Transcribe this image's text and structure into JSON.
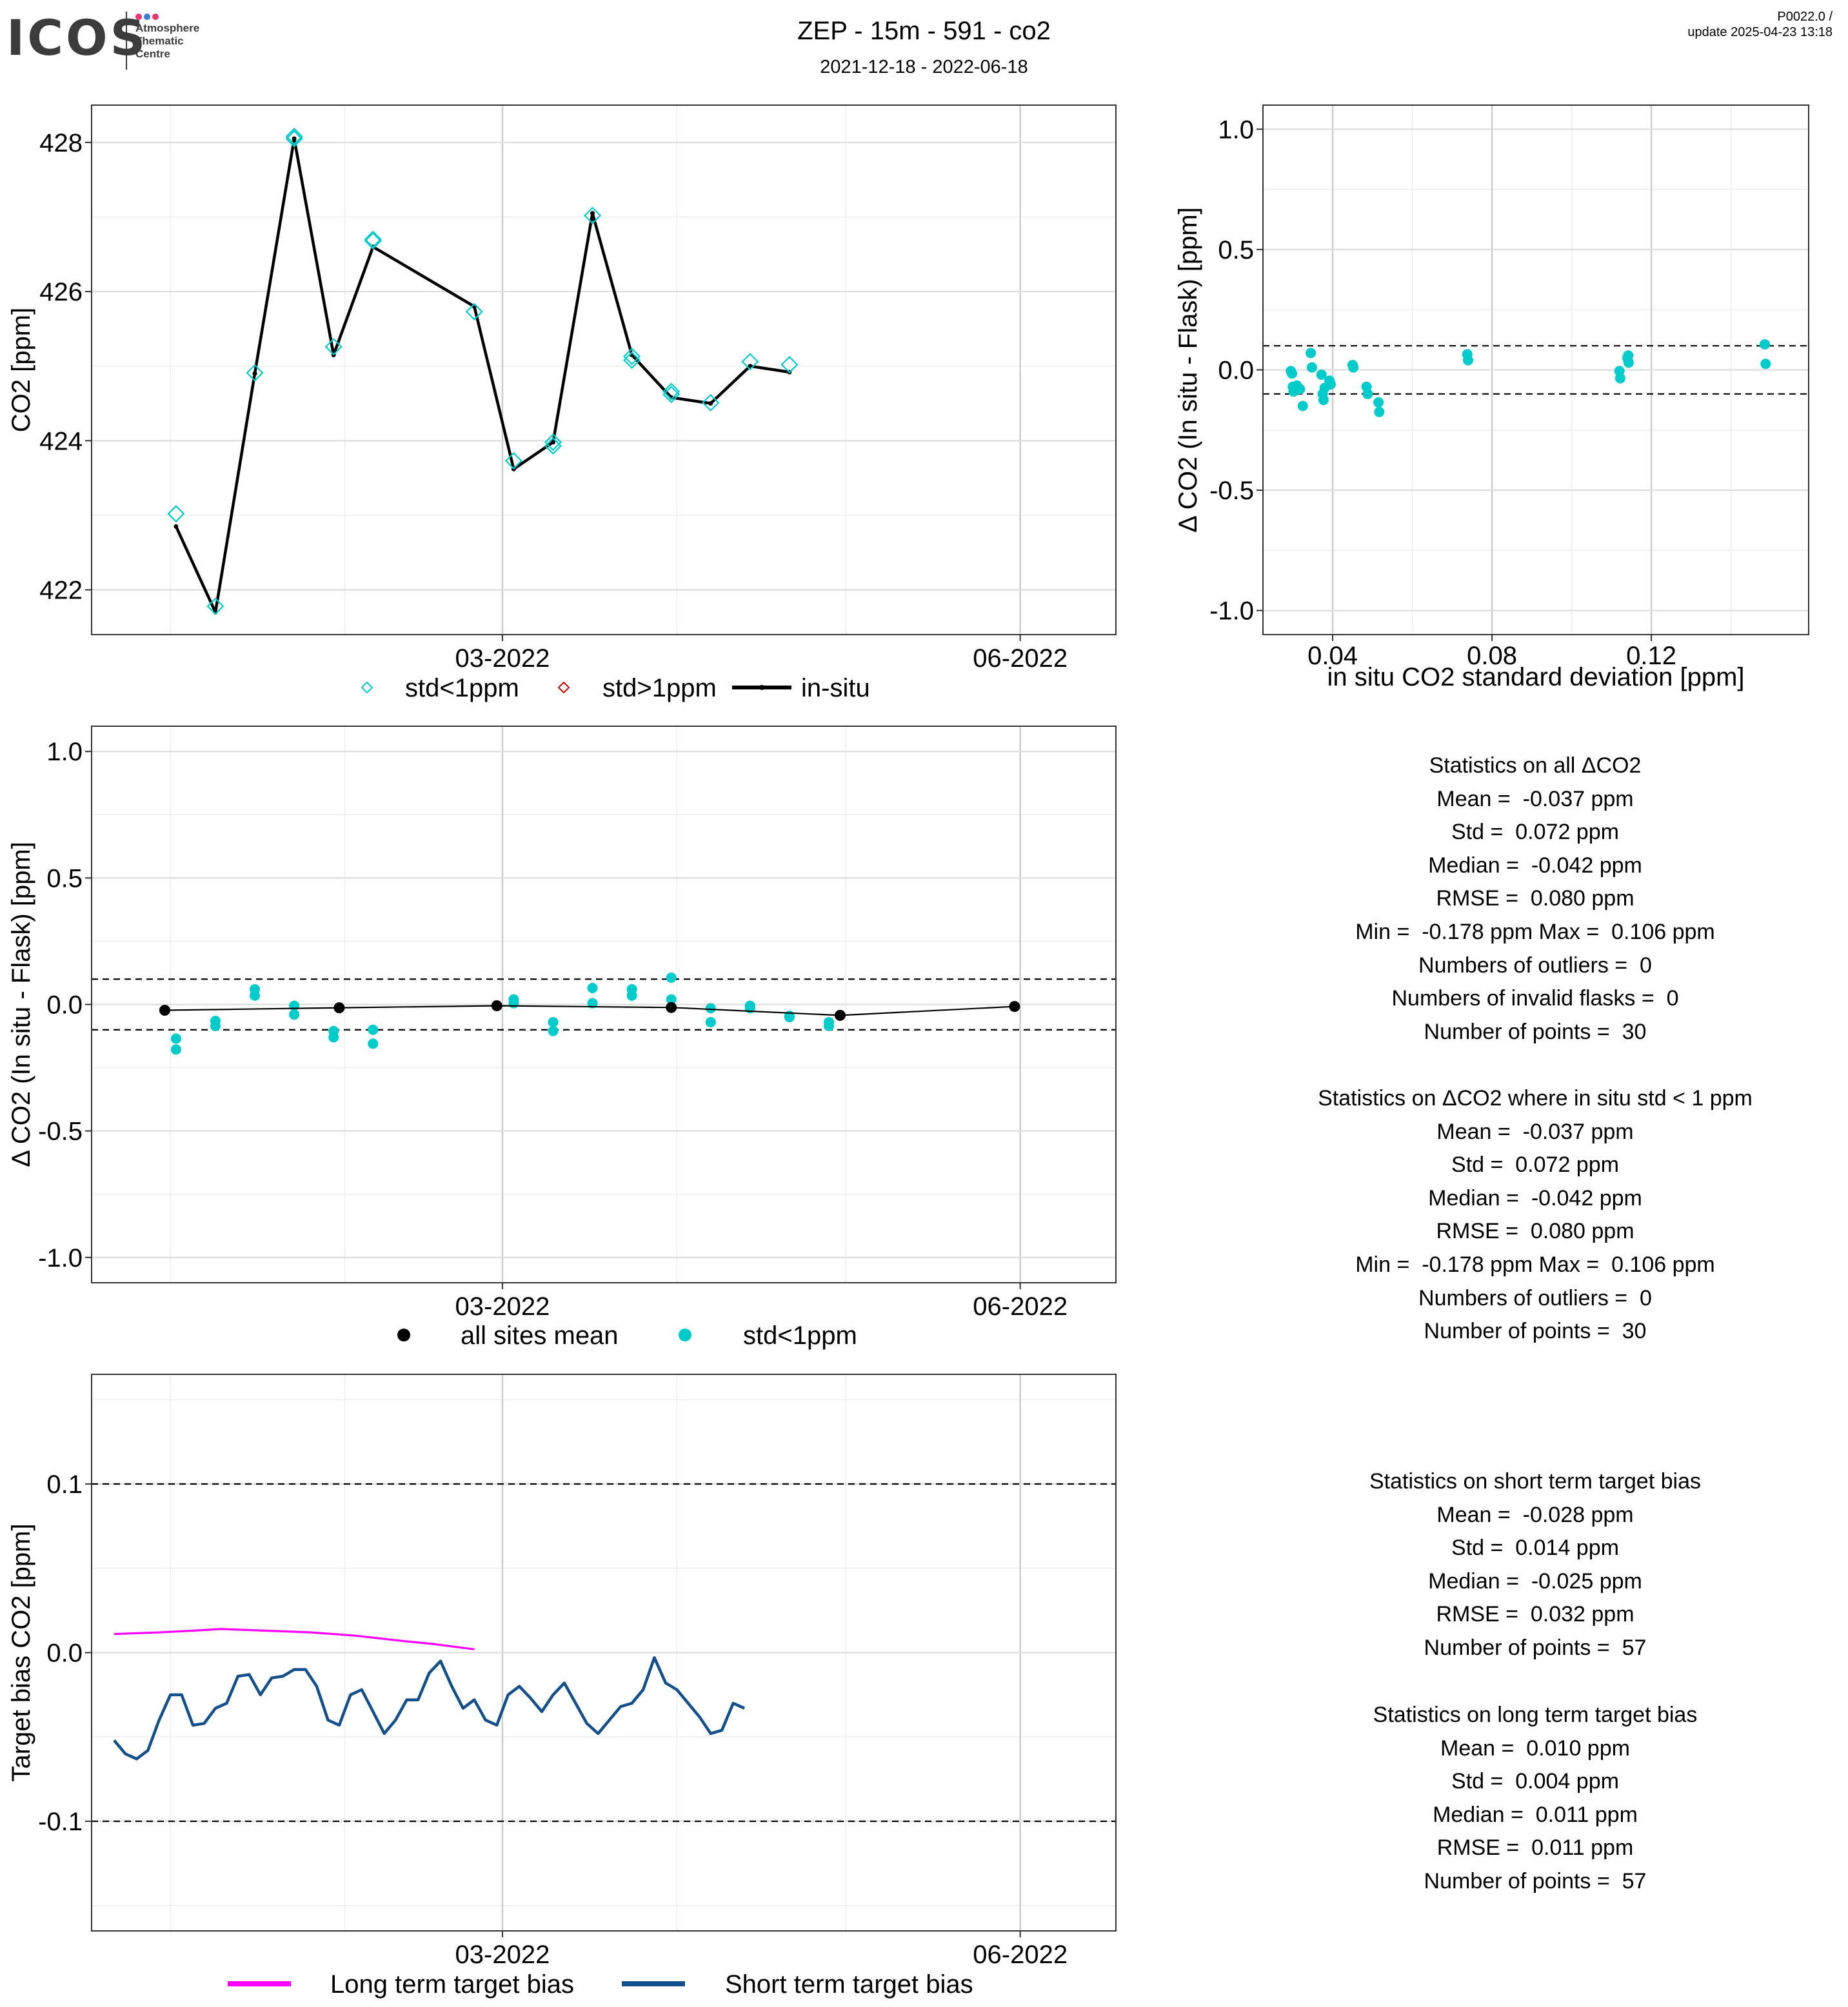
{
  "header": {
    "title": "ZEP - 15m - 591 - co2",
    "subtitle": "2021-12-18 - 2022-06-18",
    "version": "P0022.0 /",
    "update": "update  2025-04-23 13:18",
    "logo": {
      "text": "ICOS",
      "sub": [
        "Atmosphere",
        "Thematic",
        "Centre"
      ],
      "dot_colors": [
        "#e8386f",
        "#3a7ad8",
        "#e8386f"
      ]
    }
  },
  "colors": {
    "flask": "#00cccc",
    "flask_bad": "#dd0000",
    "insitu": "#000000",
    "long_term": "#ff00ff",
    "short_term": "#124f8c"
  },
  "chart_data": [
    {
      "id": "timeseries",
      "type": "line",
      "ylabel": "CO2 [ppm]",
      "x_ticks": [
        "03-2022",
        "06-2022"
      ],
      "y_ticks": [
        "422",
        "424",
        "426",
        "428"
      ],
      "ylim": [
        421.4,
        428.5
      ],
      "legend": [
        "std<1ppm",
        "std>1ppm",
        "in-situ"
      ],
      "legend_position": "bottom",
      "insitu": [
        {
          "date": "2022-01-02",
          "co2": 422.85
        },
        {
          "date": "2022-01-09",
          "co2": 421.7
        },
        {
          "date": "2022-01-16",
          "co2": 424.9
        },
        {
          "date": "2022-01-23",
          "co2": 428.05
        },
        {
          "date": "2022-01-30",
          "co2": 425.15
        },
        {
          "date": "2022-02-06",
          "co2": 426.6
        },
        {
          "date": "2022-02-24",
          "co2": 425.8
        },
        {
          "date": "2022-03-03",
          "co2": 423.62
        },
        {
          "date": "2022-03-10",
          "co2": 423.98
        },
        {
          "date": "2022-03-17",
          "co2": 427.05
        },
        {
          "date": "2022-03-24",
          "co2": 425.15
        },
        {
          "date": "2022-03-31",
          "co2": 424.58
        },
        {
          "date": "2022-04-07",
          "co2": 424.5
        },
        {
          "date": "2022-04-14",
          "co2": 425.0
        },
        {
          "date": "2022-04-21",
          "co2": 424.92
        }
      ],
      "flask_std_lt_1": [
        {
          "date": "2022-01-02",
          "co2": 423.02
        },
        {
          "date": "2022-01-09",
          "co2": 421.78
        },
        {
          "date": "2022-01-16",
          "co2": 424.91
        },
        {
          "date": "2022-01-23",
          "co2": 428.08
        },
        {
          "date": "2022-01-23",
          "co2": 428.05
        },
        {
          "date": "2022-01-30",
          "co2": 425.26
        },
        {
          "date": "2022-02-06",
          "co2": 426.7
        },
        {
          "date": "2022-02-06",
          "co2": 426.68
        },
        {
          "date": "2022-02-24",
          "co2": 425.73
        },
        {
          "date": "2022-03-03",
          "co2": 423.73
        },
        {
          "date": "2022-03-10",
          "co2": 423.93
        },
        {
          "date": "2022-03-10",
          "co2": 423.98
        },
        {
          "date": "2022-03-17",
          "co2": 427.02
        },
        {
          "date": "2022-03-24",
          "co2": 425.08
        },
        {
          "date": "2022-03-24",
          "co2": 425.13
        },
        {
          "date": "2022-03-31",
          "co2": 424.62
        },
        {
          "date": "2022-03-31",
          "co2": 424.66
        },
        {
          "date": "2022-04-07",
          "co2": 424.51
        },
        {
          "date": "2022-04-14",
          "co2": 425.06
        },
        {
          "date": "2022-04-21",
          "co2": 425.02
        }
      ],
      "flask_std_gt_1": []
    },
    {
      "id": "delta_vs_std",
      "type": "scatter",
      "xlabel": "in situ CO2 standard deviation [ppm]",
      "ylabel": "Δ CO2 (In situ - Flask) [ppm]",
      "x_ticks": [
        "0.04",
        "0.08",
        "0.12"
      ],
      "y_ticks": [
        "-1.0",
        "-0.5",
        "0.0",
        "0.5",
        "1.0"
      ],
      "xlim": [
        0.0225,
        0.1595
      ],
      "ylim": [
        -1.1,
        1.1
      ],
      "reference_lines": [
        -0.1,
        0.1
      ],
      "points": [
        {
          "std": 0.0295,
          "delta": -0.005
        },
        {
          "std": 0.0298,
          "delta": -0.015
        },
        {
          "std": 0.03,
          "delta": -0.07
        },
        {
          "std": 0.0302,
          "delta": -0.09
        },
        {
          "std": 0.031,
          "delta": -0.065
        },
        {
          "std": 0.0318,
          "delta": -0.08
        },
        {
          "std": 0.0325,
          "delta": -0.15
        },
        {
          "std": 0.0345,
          "delta": 0.07
        },
        {
          "std": 0.0348,
          "delta": 0.01
        },
        {
          "std": 0.0372,
          "delta": -0.02
        },
        {
          "std": 0.0375,
          "delta": -0.1
        },
        {
          "std": 0.0377,
          "delta": -0.125
        },
        {
          "std": 0.038,
          "delta": -0.075
        },
        {
          "std": 0.0392,
          "delta": -0.045
        },
        {
          "std": 0.0395,
          "delta": -0.06
        },
        {
          "std": 0.045,
          "delta": 0.02
        },
        {
          "std": 0.0452,
          "delta": 0.01
        },
        {
          "std": 0.0485,
          "delta": -0.07
        },
        {
          "std": 0.0488,
          "delta": -0.1
        },
        {
          "std": 0.0515,
          "delta": -0.135
        },
        {
          "std": 0.0517,
          "delta": -0.175
        },
        {
          "std": 0.0738,
          "delta": 0.065
        },
        {
          "std": 0.074,
          "delta": 0.04
        },
        {
          "std": 0.112,
          "delta": -0.005
        },
        {
          "std": 0.1122,
          "delta": -0.035
        },
        {
          "std": 0.114,
          "delta": 0.05
        },
        {
          "std": 0.1142,
          "delta": 0.06
        },
        {
          "std": 0.1143,
          "delta": 0.03
        },
        {
          "std": 0.1485,
          "delta": 0.106
        },
        {
          "std": 0.1487,
          "delta": 0.025
        }
      ]
    },
    {
      "id": "delta_timeseries",
      "type": "scatter",
      "ylabel": "Δ CO2 (In situ - Flask) [ppm]",
      "x_ticks": [
        "03-2022",
        "06-2022"
      ],
      "y_ticks": [
        "-1.0",
        "-0.5",
        "0.0",
        "0.5",
        "1.0"
      ],
      "ylim": [
        -1.1,
        1.1
      ],
      "reference_lines": [
        -0.1,
        0.1
      ],
      "legend": [
        "all sites mean",
        "std<1ppm"
      ],
      "legend_position": "bottom",
      "all_sites_mean": [
        {
          "date": "2021-12-31",
          "delta": -0.023
        },
        {
          "date": "2022-01-31",
          "delta": -0.013
        },
        {
          "date": "2022-02-28",
          "delta": -0.005
        },
        {
          "date": "2022-03-31",
          "delta": -0.012
        },
        {
          "date": "2022-04-30",
          "delta": -0.043
        },
        {
          "date": "2022-05-31",
          "delta": -0.008
        }
      ],
      "points": [
        {
          "date": "2022-01-02",
          "delta": -0.135
        },
        {
          "date": "2022-01-02",
          "delta": -0.178
        },
        {
          "date": "2022-01-09",
          "delta": -0.065
        },
        {
          "date": "2022-01-09",
          "delta": -0.085
        },
        {
          "date": "2022-01-16",
          "delta": 0.06
        },
        {
          "date": "2022-01-16",
          "delta": 0.035
        },
        {
          "date": "2022-01-23",
          "delta": -0.005
        },
        {
          "date": "2022-01-23",
          "delta": -0.04
        },
        {
          "date": "2022-01-30",
          "delta": -0.105
        },
        {
          "date": "2022-01-30",
          "delta": -0.13
        },
        {
          "date": "2022-02-06",
          "delta": -0.1
        },
        {
          "date": "2022-02-06",
          "delta": -0.155
        },
        {
          "date": "2022-03-03",
          "delta": 0.02
        },
        {
          "date": "2022-03-03",
          "delta": 0.005
        },
        {
          "date": "2022-03-10",
          "delta": -0.07
        },
        {
          "date": "2022-03-10",
          "delta": -0.105
        },
        {
          "date": "2022-03-17",
          "delta": 0.065
        },
        {
          "date": "2022-03-17",
          "delta": 0.005
        },
        {
          "date": "2022-03-24",
          "delta": 0.06
        },
        {
          "date": "2022-03-24",
          "delta": 0.035
        },
        {
          "date": "2022-03-31",
          "delta": 0.106
        },
        {
          "date": "2022-03-31",
          "delta": 0.02
        },
        {
          "date": "2022-04-07",
          "delta": -0.015
        },
        {
          "date": "2022-04-07",
          "delta": -0.07
        },
        {
          "date": "2022-04-14",
          "delta": -0.005
        },
        {
          "date": "2022-04-14",
          "delta": -0.015
        },
        {
          "date": "2022-04-21",
          "delta": -0.045
        },
        {
          "date": "2022-04-21",
          "delta": -0.05
        },
        {
          "date": "2022-04-28",
          "delta": -0.07
        },
        {
          "date": "2022-04-28",
          "delta": -0.085
        }
      ]
    },
    {
      "id": "target_bias",
      "type": "line",
      "ylabel": "Target bias CO2 [ppm]",
      "x_ticks": [
        "03-2022",
        "06-2022"
      ],
      "y_ticks": [
        "-0.1",
        "0.0",
        "0.1"
      ],
      "ylim": [
        -0.165,
        0.165
      ],
      "reference_lines": [
        -0.1,
        0.1
      ],
      "legend": [
        "Long term target bias",
        "Short term target bias"
      ],
      "legend_position": "bottom",
      "long_term": [
        {
          "date": "2021-12-22",
          "bias": 0.011
        },
        {
          "date": "2021-12-30",
          "bias": 0.012
        },
        {
          "date": "2022-01-05",
          "bias": 0.013
        },
        {
          "date": "2022-01-10",
          "bias": 0.014
        },
        {
          "date": "2022-01-18",
          "bias": 0.013
        },
        {
          "date": "2022-01-26",
          "bias": 0.012
        },
        {
          "date": "2022-02-03",
          "bias": 0.01
        },
        {
          "date": "2022-02-11",
          "bias": 0.007
        },
        {
          "date": "2022-02-17",
          "bias": 0.005
        },
        {
          "date": "2022-02-24",
          "bias": 0.002
        }
      ],
      "short_term": [
        {
          "date": "2021-12-22",
          "bias": -0.052
        },
        {
          "date": "2021-12-24",
          "bias": -0.06
        },
        {
          "date": "2021-12-26",
          "bias": -0.063
        },
        {
          "date": "2021-12-28",
          "bias": -0.058
        },
        {
          "date": "2021-12-30",
          "bias": -0.04
        },
        {
          "date": "2022-01-01",
          "bias": -0.025
        },
        {
          "date": "2022-01-03",
          "bias": -0.025
        },
        {
          "date": "2022-01-05",
          "bias": -0.043
        },
        {
          "date": "2022-01-07",
          "bias": -0.042
        },
        {
          "date": "2022-01-09",
          "bias": -0.033
        },
        {
          "date": "2022-01-11",
          "bias": -0.03
        },
        {
          "date": "2022-01-13",
          "bias": -0.014
        },
        {
          "date": "2022-01-15",
          "bias": -0.013
        },
        {
          "date": "2022-01-17",
          "bias": -0.025
        },
        {
          "date": "2022-01-19",
          "bias": -0.015
        },
        {
          "date": "2022-01-21",
          "bias": -0.014
        },
        {
          "date": "2022-01-23",
          "bias": -0.01
        },
        {
          "date": "2022-01-25",
          "bias": -0.01
        },
        {
          "date": "2022-01-27",
          "bias": -0.02
        },
        {
          "date": "2022-01-29",
          "bias": -0.04
        },
        {
          "date": "2022-01-31",
          "bias": -0.043
        },
        {
          "date": "2022-02-02",
          "bias": -0.025
        },
        {
          "date": "2022-02-04",
          "bias": -0.022
        },
        {
          "date": "2022-02-06",
          "bias": -0.035
        },
        {
          "date": "2022-02-08",
          "bias": -0.048
        },
        {
          "date": "2022-02-10",
          "bias": -0.04
        },
        {
          "date": "2022-02-12",
          "bias": -0.028
        },
        {
          "date": "2022-02-14",
          "bias": -0.028
        },
        {
          "date": "2022-02-16",
          "bias": -0.012
        },
        {
          "date": "2022-02-18",
          "bias": -0.005
        },
        {
          "date": "2022-02-20",
          "bias": -0.02
        },
        {
          "date": "2022-02-22",
          "bias": -0.033
        },
        {
          "date": "2022-02-24",
          "bias": -0.028
        },
        {
          "date": "2022-02-26",
          "bias": -0.04
        },
        {
          "date": "2022-02-28",
          "bias": -0.043
        },
        {
          "date": "2022-03-02",
          "bias": -0.025
        },
        {
          "date": "2022-03-04",
          "bias": -0.02
        },
        {
          "date": "2022-03-06",
          "bias": -0.027
        },
        {
          "date": "2022-03-08",
          "bias": -0.035
        },
        {
          "date": "2022-03-10",
          "bias": -0.025
        },
        {
          "date": "2022-03-12",
          "bias": -0.018
        },
        {
          "date": "2022-03-14",
          "bias": -0.03
        },
        {
          "date": "2022-03-16",
          "bias": -0.042
        },
        {
          "date": "2022-03-18",
          "bias": -0.048
        },
        {
          "date": "2022-03-20",
          "bias": -0.04
        },
        {
          "date": "2022-03-22",
          "bias": -0.032
        },
        {
          "date": "2022-03-24",
          "bias": -0.03
        },
        {
          "date": "2022-03-26",
          "bias": -0.022
        },
        {
          "date": "2022-03-28",
          "bias": -0.003
        },
        {
          "date": "2022-03-30",
          "bias": -0.018
        },
        {
          "date": "2022-04-01",
          "bias": -0.022
        },
        {
          "date": "2022-04-03",
          "bias": -0.03
        },
        {
          "date": "2022-04-05",
          "bias": -0.038
        },
        {
          "date": "2022-04-07",
          "bias": -0.048
        },
        {
          "date": "2022-04-09",
          "bias": -0.046
        },
        {
          "date": "2022-04-11",
          "bias": -0.03
        },
        {
          "date": "2022-04-13",
          "bias": -0.033
        }
      ]
    }
  ],
  "stats": {
    "all_delta": [
      "Statistics on all ΔCO2",
      "Mean =  -0.037 ppm",
      "Std =  0.072 ppm",
      "Median =  -0.042 ppm",
      "RMSE =  0.080 ppm",
      "Min =  -0.178 ppm Max =  0.106 ppm",
      "Numbers of outliers =  0",
      "Numbers of invalid flasks =  0",
      "Number of points =  30"
    ],
    "delta_std_lt_1": [
      "Statistics on ΔCO2 where in situ std < 1 ppm",
      "Mean =  -0.037 ppm",
      "Std =  0.072 ppm",
      "Median =  -0.042 ppm",
      "RMSE =  0.080 ppm",
      "Min =  -0.178 ppm Max =  0.106 ppm",
      "Numbers of outliers =  0",
      "Number of points =  30"
    ],
    "short_term": [
      "Statistics on short term target bias",
      "Mean =  -0.028 ppm",
      "Std =  0.014 ppm",
      "Median =  -0.025 ppm",
      "RMSE =  0.032 ppm",
      "Number of points =  57"
    ],
    "long_term": [
      "Statistics on long term target bias",
      "Mean =  0.010 ppm",
      "Std =  0.004 ppm",
      "Median =  0.011 ppm",
      "RMSE =  0.011 ppm",
      "Number of points =  57"
    ]
  }
}
